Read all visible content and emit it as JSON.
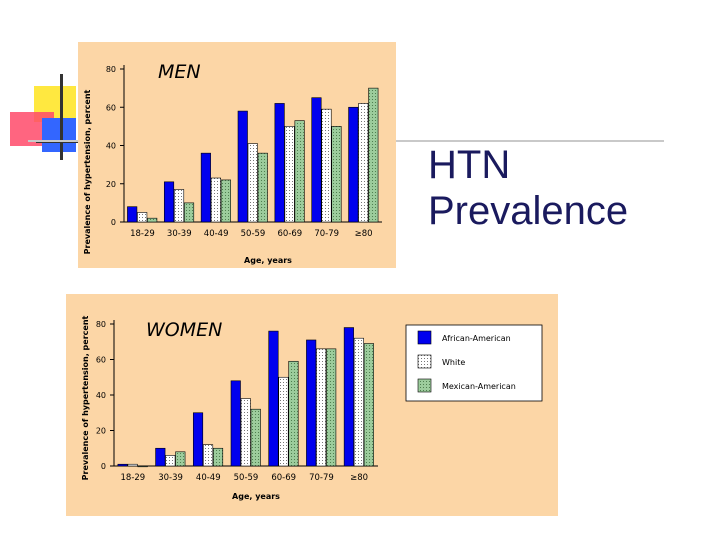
{
  "slide": {
    "title_line1": "HTN",
    "title_line2": "Prevalence"
  },
  "colors": {
    "panel": "#fcd6a6",
    "african_american": "#0000ee",
    "white": "#ffffff",
    "mexican_american": "#9ccc9c",
    "title": "#1a1a5e"
  },
  "chart_data": [
    {
      "type": "bar",
      "title": "MEN",
      "ylabel": "Prevalence of hypertension, percent",
      "xlabel": "Age, years",
      "ylim": [
        0,
        80
      ],
      "yticks": [
        0,
        20,
        40,
        60,
        80
      ],
      "categories": [
        "18-29",
        "30-39",
        "40-49",
        "50-59",
        "60-69",
        "70-79",
        "≥80"
      ],
      "series": [
        {
          "name": "African-American",
          "values": [
            8,
            21,
            36,
            58,
            62,
            65,
            60
          ]
        },
        {
          "name": "White",
          "values": [
            5,
            17,
            23,
            41,
            50,
            59,
            62
          ]
        },
        {
          "name": "Mexican-American",
          "values": [
            2,
            10,
            22,
            36,
            53,
            50,
            70
          ]
        }
      ]
    },
    {
      "type": "bar",
      "title": "WOMEN",
      "ylabel": "Prevalence of hypertension, percent",
      "xlabel": "Age, years",
      "ylim": [
        0,
        80
      ],
      "yticks": [
        0,
        20,
        40,
        60,
        80
      ],
      "categories": [
        "18-29",
        "30-39",
        "40-49",
        "50-59",
        "60-69",
        "70-79",
        "≥80"
      ],
      "legend": [
        "African-American",
        "White",
        "Mexican-American"
      ],
      "series": [
        {
          "name": "African-American",
          "values": [
            1,
            10,
            30,
            48,
            76,
            71,
            78
          ]
        },
        {
          "name": "White",
          "values": [
            1,
            6,
            12,
            38,
            50,
            66,
            72
          ]
        },
        {
          "name": "Mexican-American",
          "values": [
            0,
            8,
            10,
            32,
            59,
            66,
            69
          ]
        }
      ]
    }
  ]
}
